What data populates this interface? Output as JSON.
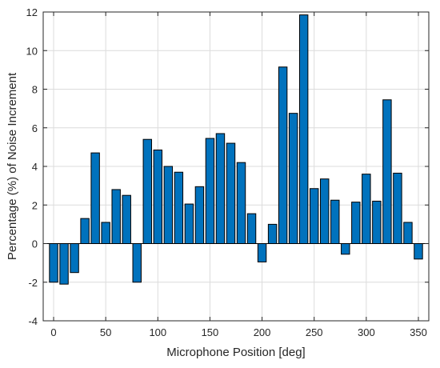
{
  "chart_data": {
    "type": "bar",
    "title": "",
    "xlabel": "Microphone Position [deg]",
    "ylabel": "Percentage (%) of Noise Increment",
    "xlim": [
      -10,
      360
    ],
    "ylim": [
      -4,
      12
    ],
    "xticks": [
      0,
      50,
      100,
      150,
      200,
      250,
      300,
      350
    ],
    "yticks": [
      -4,
      -2,
      0,
      2,
      4,
      6,
      8,
      10,
      12
    ],
    "grid": true,
    "bar_color": "#0072BD",
    "edge_color": "#000000",
    "x": [
      0,
      10,
      20,
      30,
      40,
      50,
      60,
      70,
      80,
      90,
      100,
      110,
      120,
      130,
      140,
      150,
      160,
      170,
      180,
      190,
      200,
      210,
      220,
      230,
      240,
      250,
      260,
      270,
      280,
      290,
      300,
      310,
      320,
      330,
      340,
      350
    ],
    "values": [
      -2.0,
      -2.1,
      -1.5,
      1.3,
      4.7,
      1.1,
      2.8,
      2.5,
      -2.0,
      5.4,
      4.85,
      4.0,
      3.7,
      2.05,
      2.95,
      5.45,
      5.7,
      5.2,
      4.2,
      1.55,
      -0.95,
      1.0,
      9.15,
      6.75,
      11.85,
      2.85,
      3.35,
      2.25,
      -0.55,
      2.15,
      3.6,
      2.2,
      7.45,
      3.65,
      1.1,
      -0.8
    ]
  }
}
